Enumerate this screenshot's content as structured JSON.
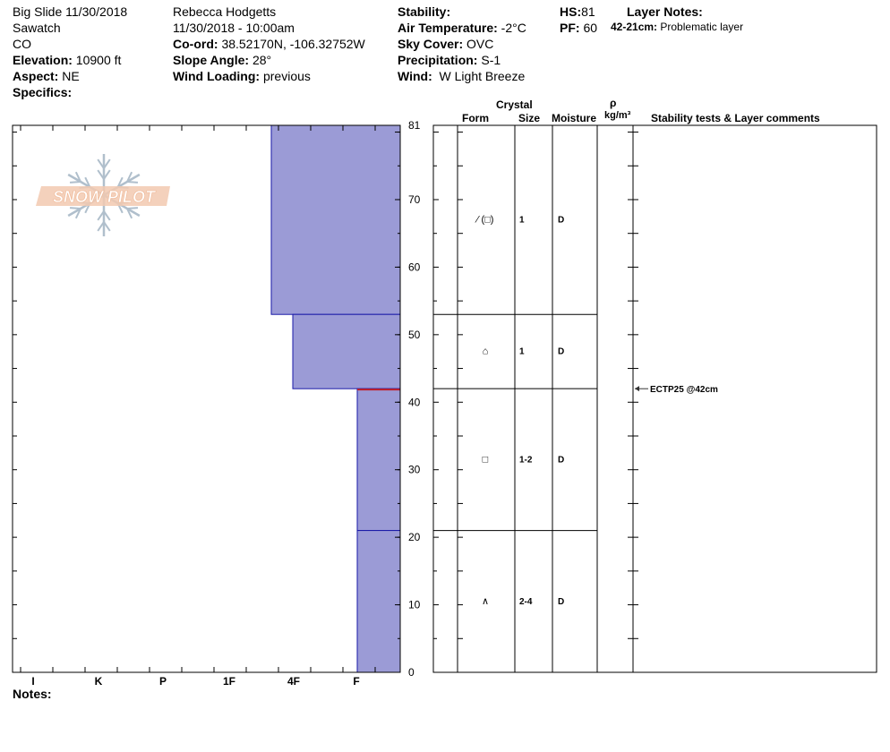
{
  "header": {
    "col1": [
      "Big Slide 11/30/2018",
      "Sawatch",
      "CO"
    ],
    "elevation": {
      "label": "Elevation:",
      "value": "10900 ft"
    },
    "aspect": {
      "label": "Aspect:",
      "value": "NE"
    },
    "specifics": {
      "label": "Specifics:",
      "value": ""
    },
    "observer": "Rebecca Hodgetts",
    "datetime": "11/30/2018 - 10:00am",
    "coord": {
      "label": "Co-ord:",
      "value": "38.52170N, -106.32752W"
    },
    "slope": {
      "label": "Slope Angle:",
      "value": "28°"
    },
    "wind_loading": {
      "label": "Wind Loading:",
      "value": "previous"
    },
    "stability": {
      "label": "Stability:",
      "value": ""
    },
    "air_temp": {
      "label": "Air Temperature:",
      "value": "-2°C"
    },
    "sky": {
      "label": "Sky Cover:",
      "value": "OVC"
    },
    "precip": {
      "label": "Precipitation:",
      "value": "S-1"
    },
    "wind": {
      "label": "Wind:",
      "value": "W Light Breeze"
    },
    "hs": {
      "label": "HS:",
      "value": "81"
    },
    "pf": {
      "label": "PF:",
      "value": "60"
    },
    "layer_notes": {
      "label": "Layer Notes:",
      "range": "42-21cm:",
      "text": "Problematic layer"
    }
  },
  "columns": {
    "crystal": "Crystal",
    "form": "Form",
    "size": "Size",
    "moisture": "Moisture",
    "rho": "ρ",
    "density_unit": "kg/m³",
    "stability": "Stability tests & Layer comments"
  },
  "notes_label": "Notes:",
  "logo_text": "SNOW PILOT",
  "colors": {
    "fill": "#9b9bd6",
    "edge": "#1a1aa8",
    "weak_layer": "#c0202a",
    "logo": "#f2c9b0",
    "flake": "#b0bfcc"
  },
  "chart_data": {
    "type": "bar",
    "x_ticks": [
      "I",
      "K",
      "P",
      "1F",
      "4F",
      "F"
    ],
    "y_ticks": [
      0,
      10,
      20,
      30,
      40,
      50,
      60,
      70,
      81
    ],
    "ylim": [
      0,
      81
    ],
    "layers": [
      {
        "top": 81,
        "bottom": 53,
        "hardness": "1F-",
        "form": "⁄ (□)",
        "size": "1",
        "moisture": "D"
      },
      {
        "top": 53,
        "bottom": 42,
        "hardness": "4F+",
        "form": "⌂",
        "size": "1",
        "moisture": "D"
      },
      {
        "top": 42,
        "bottom": 21,
        "hardness": "F+",
        "form": "□",
        "size": "1-2",
        "moisture": "D"
      },
      {
        "top": 21,
        "bottom": 0,
        "hardness": "F+",
        "form": "∧",
        "size": "2-4",
        "moisture": "D"
      }
    ],
    "weak_layer_depth": 42,
    "tests": [
      {
        "depth": 42,
        "text": "ECTP25 @42cm"
      }
    ]
  }
}
